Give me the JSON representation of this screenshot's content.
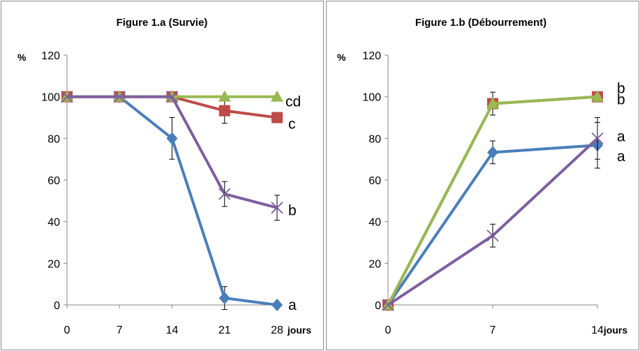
{
  "chart_data": [
    {
      "type": "line",
      "title": "Figure 1.a (Survie)",
      "ylabel": "%",
      "xlabel": "jours",
      "x": [
        0,
        7,
        14,
        21,
        28
      ],
      "xticks": [
        "0",
        "7",
        "14",
        "21",
        "28"
      ],
      "yticks": [
        "0",
        "20",
        "40",
        "60",
        "80",
        "100",
        "120"
      ],
      "ylim": [
        0,
        120
      ],
      "grid": false,
      "series": [
        {
          "color": "#4a7ebb",
          "marker": "diamond",
          "values": [
            100,
            100,
            80,
            3.3,
            0
          ],
          "errors": [
            0,
            0,
            10,
            5.5,
            0
          ],
          "end_label": "a"
        },
        {
          "color": "#be4b48",
          "marker": "square",
          "values": [
            100,
            100,
            100,
            93.3,
            90
          ],
          "errors": [
            0,
            0,
            0,
            6,
            0
          ],
          "end_label": "c"
        },
        {
          "color": "#98b954",
          "marker": "triangle",
          "values": [
            100,
            100,
            100,
            100,
            100
          ],
          "errors": [
            0,
            0,
            0,
            0,
            0
          ],
          "end_label": "cd"
        },
        {
          "color": "#7d60a0",
          "marker": "x",
          "values": [
            100,
            100,
            100,
            53.3,
            46.7
          ],
          "errors": [
            0,
            0,
            0,
            6,
            6
          ],
          "end_label": "b"
        }
      ]
    },
    {
      "type": "line",
      "title": "Figure 1.b (Débourrement)",
      "ylabel": "%",
      "xlabel": "jours",
      "x": [
        0,
        7,
        14
      ],
      "xticks": [
        "0",
        "7",
        "14"
      ],
      "yticks": [
        "0",
        "20",
        "40",
        "60",
        "80",
        "100",
        "120"
      ],
      "ylim": [
        0,
        120
      ],
      "grid": false,
      "series": [
        {
          "color": "#4a7ebb",
          "marker": "diamond",
          "values": [
            0,
            73.3,
            76.7
          ],
          "errors": [
            0,
            5.5,
            11
          ],
          "end_label": "a"
        },
        {
          "color": "#be4b48",
          "marker": "square",
          "values": [
            0,
            96.7,
            100
          ],
          "errors": [
            0,
            5.5,
            0
          ],
          "end_label": "b"
        },
        {
          "color": "#98b954",
          "marker": "triangle",
          "values": [
            0,
            96.7,
            100
          ],
          "errors": [
            0,
            0,
            0
          ],
          "end_label": "b"
        },
        {
          "color": "#7d60a0",
          "marker": "x",
          "values": [
            0,
            33.3,
            80
          ],
          "errors": [
            0,
            5.5,
            10
          ],
          "end_label": "a"
        }
      ]
    }
  ]
}
